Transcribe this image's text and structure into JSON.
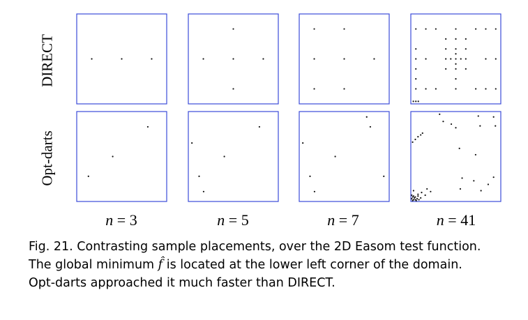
{
  "rows": [
    {
      "label": "DIRECT"
    },
    {
      "label": "Opt-darts"
    }
  ],
  "columns": [
    {
      "n_var": "n",
      "n_eq": " = 3"
    },
    {
      "n_var": "n",
      "n_eq": " = 5"
    },
    {
      "n_var": "n",
      "n_eq": " = 7"
    },
    {
      "n_var": "n",
      "n_eq": " = 41"
    }
  ],
  "colors": {
    "frame": "#3b4bd8",
    "point": "#111111"
  },
  "chart_data": [
    {
      "type": "scatter",
      "row": "DIRECT",
      "n": 3,
      "xlim": [
        0,
        1
      ],
      "ylim": [
        0,
        1
      ],
      "points": [
        [
          0.167,
          0.5
        ],
        [
          0.5,
          0.5
        ],
        [
          0.833,
          0.5
        ]
      ]
    },
    {
      "type": "scatter",
      "row": "DIRECT",
      "n": 5,
      "xlim": [
        0,
        1
      ],
      "ylim": [
        0,
        1
      ],
      "points": [
        [
          0.167,
          0.5
        ],
        [
          0.5,
          0.5
        ],
        [
          0.833,
          0.5
        ],
        [
          0.5,
          0.833
        ],
        [
          0.5,
          0.167
        ]
      ]
    },
    {
      "type": "scatter",
      "row": "DIRECT",
      "n": 7,
      "xlim": [
        0,
        1
      ],
      "ylim": [
        0,
        1
      ],
      "points": [
        [
          0.167,
          0.833
        ],
        [
          0.5,
          0.833
        ],
        [
          0.167,
          0.5
        ],
        [
          0.5,
          0.5
        ],
        [
          0.833,
          0.5
        ],
        [
          0.167,
          0.167
        ],
        [
          0.5,
          0.167
        ]
      ]
    },
    {
      "type": "scatter",
      "row": "DIRECT",
      "n": 41,
      "xlim": [
        0,
        1
      ],
      "ylim": [
        0,
        1
      ],
      "points": [
        [
          0.056,
          0.833
        ],
        [
          0.167,
          0.833
        ],
        [
          0.278,
          0.833
        ],
        [
          0.5,
          0.833
        ],
        [
          0.722,
          0.833
        ],
        [
          0.833,
          0.833
        ],
        [
          0.944,
          0.833
        ],
        [
          0.167,
          0.5
        ],
        [
          0.5,
          0.5
        ],
        [
          0.833,
          0.5
        ],
        [
          0.389,
          0.5
        ],
        [
          0.444,
          0.5
        ],
        [
          0.556,
          0.5
        ],
        [
          0.611,
          0.5
        ],
        [
          0.5,
          0.389
        ],
        [
          0.5,
          0.444
        ],
        [
          0.5,
          0.556
        ],
        [
          0.5,
          0.611
        ],
        [
          0.389,
          0.611
        ],
        [
          0.611,
          0.611
        ],
        [
          0.389,
          0.389
        ],
        [
          0.611,
          0.389
        ],
        [
          0.5,
          0.722
        ],
        [
          0.5,
          0.278
        ],
        [
          0.389,
          0.722
        ],
        [
          0.611,
          0.722
        ],
        [
          0.056,
          0.5
        ],
        [
          0.944,
          0.5
        ],
        [
          0.056,
          0.167
        ],
        [
          0.167,
          0.167
        ],
        [
          0.278,
          0.167
        ],
        [
          0.5,
          0.167
        ],
        [
          0.722,
          0.167
        ],
        [
          0.833,
          0.167
        ],
        [
          0.944,
          0.167
        ],
        [
          0.056,
          0.278
        ],
        [
          0.056,
          0.389
        ],
        [
          0.056,
          0.611
        ],
        [
          0.028,
          0.028
        ],
        [
          0.056,
          0.028
        ],
        [
          0.083,
          0.028
        ]
      ]
    },
    {
      "type": "scatter",
      "row": "Opt-darts",
      "n": 3,
      "xlim": [
        0,
        1
      ],
      "ylim": [
        0,
        1
      ],
      "points": [
        [
          0.13,
          0.28
        ],
        [
          0.4,
          0.5
        ],
        [
          0.79,
          0.83
        ]
      ]
    },
    {
      "type": "scatter",
      "row": "Opt-darts",
      "n": 5,
      "xlim": [
        0,
        1
      ],
      "ylim": [
        0,
        1
      ],
      "points": [
        [
          0.04,
          0.65
        ],
        [
          0.12,
          0.28
        ],
        [
          0.17,
          0.11
        ],
        [
          0.4,
          0.5
        ],
        [
          0.79,
          0.83
        ]
      ]
    },
    {
      "type": "scatter",
      "row": "Opt-darts",
      "n": 7,
      "xlim": [
        0,
        1
      ],
      "ylim": [
        0,
        1
      ],
      "points": [
        [
          0.04,
          0.65
        ],
        [
          0.12,
          0.28
        ],
        [
          0.17,
          0.11
        ],
        [
          0.4,
          0.5
        ],
        [
          0.75,
          0.94
        ],
        [
          0.79,
          0.83
        ],
        [
          0.94,
          0.28
        ]
      ]
    },
    {
      "type": "scatter",
      "row": "Opt-darts",
      "n": 41,
      "xlim": [
        0,
        1
      ],
      "ylim": [
        0,
        1
      ],
      "points": [
        [
          0.02,
          0.66
        ],
        [
          0.05,
          0.69
        ],
        [
          0.08,
          0.72
        ],
        [
          0.11,
          0.74
        ],
        [
          0.13,
          0.76
        ],
        [
          0.32,
          0.97
        ],
        [
          0.36,
          0.89
        ],
        [
          0.45,
          0.86
        ],
        [
          0.5,
          0.82
        ],
        [
          0.75,
          0.95
        ],
        [
          0.77,
          0.84
        ],
        [
          0.92,
          0.94
        ],
        [
          0.94,
          0.84
        ],
        [
          0.54,
          0.59
        ],
        [
          0.72,
          0.52
        ],
        [
          0.57,
          0.26
        ],
        [
          0.7,
          0.23
        ],
        [
          0.55,
          0.14
        ],
        [
          0.86,
          0.19
        ],
        [
          0.78,
          0.12
        ],
        [
          0.92,
          0.27
        ],
        [
          0.03,
          0.12
        ],
        [
          0.08,
          0.08
        ],
        [
          0.12,
          0.1
        ],
        [
          0.16,
          0.07
        ],
        [
          0.18,
          0.14
        ],
        [
          0.22,
          0.11
        ],
        [
          0.01,
          0.03
        ],
        [
          0.02,
          0.01
        ],
        [
          0.03,
          0.02
        ],
        [
          0.04,
          0.04
        ],
        [
          0.05,
          0.02
        ],
        [
          0.06,
          0.01
        ],
        [
          0.07,
          0.03
        ],
        [
          0.02,
          0.05
        ],
        [
          0.09,
          0.02
        ],
        [
          0.01,
          0.07
        ],
        [
          0.03,
          0.06
        ],
        [
          0.11,
          0.04
        ],
        [
          0.05,
          0.05
        ],
        [
          0.08,
          0.06
        ]
      ]
    }
  ],
  "caption": {
    "line1": "Fig. 21.  Contrasting sample placements, over the 2D Easom test function.",
    "line2_before": "The global minimum ",
    "fhat": "f̂",
    "line2_after": " is located at the lower left corner of the domain.",
    "line3": "Opt-darts approached it much faster than DIRECT."
  }
}
